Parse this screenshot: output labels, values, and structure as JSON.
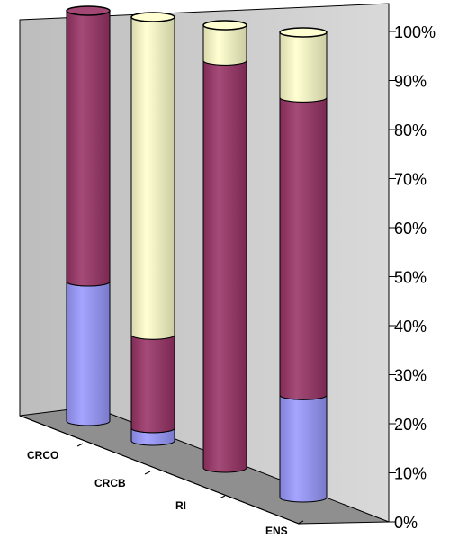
{
  "chart_data": {
    "type": "bar",
    "stacked": "100%",
    "three_d": true,
    "bar_shape": "cylinder",
    "categories": [
      "CRCO",
      "CRCB",
      "RI",
      "ENS"
    ],
    "series": [
      {
        "values": [
          34,
          3,
          0,
          22
        ],
        "color": "#9999ff"
      },
      {
        "values": [
          66,
          22,
          92,
          64
        ],
        "color": "#993366"
      },
      {
        "values": [
          0,
          75,
          8,
          14
        ],
        "color": "#ffffcc"
      }
    ],
    "y_ticks": [
      "0%",
      "10%",
      "20%",
      "30%",
      "40%",
      "50%",
      "60%",
      "70%",
      "80%",
      "90%",
      "100%"
    ],
    "ylim": [
      0,
      100
    ],
    "grid": false,
    "legend": "none"
  }
}
